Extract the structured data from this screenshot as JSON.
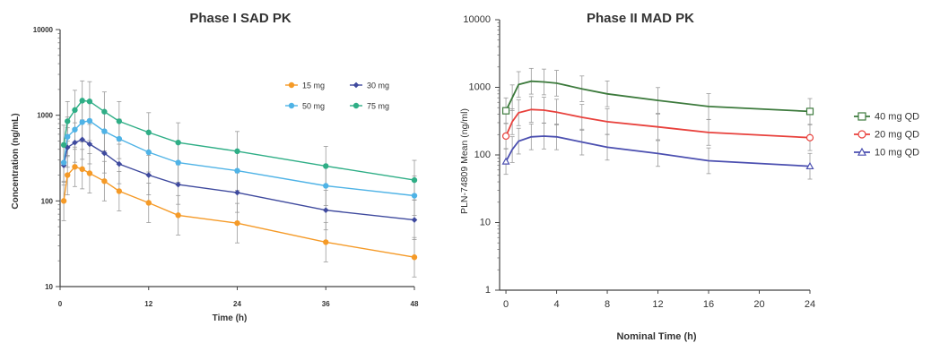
{
  "chart_data": [
    {
      "type": "line",
      "title": "Phase I SAD PK",
      "xlabel": "Time (h)",
      "ylabel": "Concentration (ng/mL)",
      "yscale": "log",
      "xlim": [
        0,
        48
      ],
      "ylim": [
        10,
        10000
      ],
      "x_ticks": [
        "0",
        "12",
        "24",
        "36",
        "48"
      ],
      "y_ticks": [
        "10",
        "100",
        "1000",
        "10000"
      ],
      "grid": false,
      "legend_position": "top-right",
      "error_bars": true,
      "x": [
        0.5,
        1,
        2,
        3,
        4,
        6,
        8,
        12,
        16,
        24,
        36,
        48
      ],
      "series": [
        {
          "name": "15 mg",
          "color": "#f59a27",
          "marker": "circle",
          "values": [
            100,
            200,
            250,
            235,
            210,
            170,
            130,
            95,
            68,
            55,
            33,
            22
          ]
        },
        {
          "name": "30 mg",
          "color": "#3f4a9e",
          "marker": "diamond",
          "values": [
            260,
            420,
            480,
            520,
            460,
            360,
            270,
            200,
            155,
            125,
            78,
            60
          ]
        },
        {
          "name": "50 mg",
          "color": "#4fb3e6",
          "marker": "circle",
          "values": [
            280,
            560,
            680,
            830,
            860,
            650,
            530,
            370,
            280,
            225,
            150,
            115
          ]
        },
        {
          "name": "75 mg",
          "color": "#2fae86",
          "marker": "circle",
          "values": [
            450,
            850,
            1150,
            1480,
            1450,
            1100,
            850,
            630,
            480,
            380,
            255,
            175
          ]
        }
      ]
    },
    {
      "type": "line",
      "title": "Phase II MAD PK",
      "xlabel": "Nominal Time (h)",
      "ylabel": "PLN-74809 Mean (ng/ml)",
      "yscale": "log",
      "xlim": [
        -0.5,
        24
      ],
      "ylim": [
        1,
        10000
      ],
      "x_ticks": [
        "0",
        "4",
        "8",
        "12",
        "16",
        "20",
        "24"
      ],
      "y_ticks": [
        "1",
        "10",
        "100",
        "1000",
        "10000"
      ],
      "grid": false,
      "legend_position": "right",
      "error_bars": true,
      "x": [
        0,
        0.5,
        1,
        2,
        3,
        4,
        6,
        8,
        12,
        16,
        24
      ],
      "series": [
        {
          "name": "40 mg QD",
          "color": "#3c7a3c",
          "marker": "square",
          "values": [
            450,
            700,
            1100,
            1230,
            1200,
            1150,
            950,
            800,
            640,
            520,
            440
          ]
        },
        {
          "name": "20 mg QD",
          "color": "#e8413c",
          "marker": "circle",
          "values": [
            190,
            310,
            420,
            470,
            460,
            430,
            360,
            310,
            260,
            215,
            180
          ]
        },
        {
          "name": "10 mg QD",
          "color": "#4b4fb0",
          "marker": "triangle",
          "values": [
            80,
            120,
            160,
            185,
            190,
            185,
            155,
            130,
            105,
            82,
            68
          ]
        }
      ]
    }
  ]
}
